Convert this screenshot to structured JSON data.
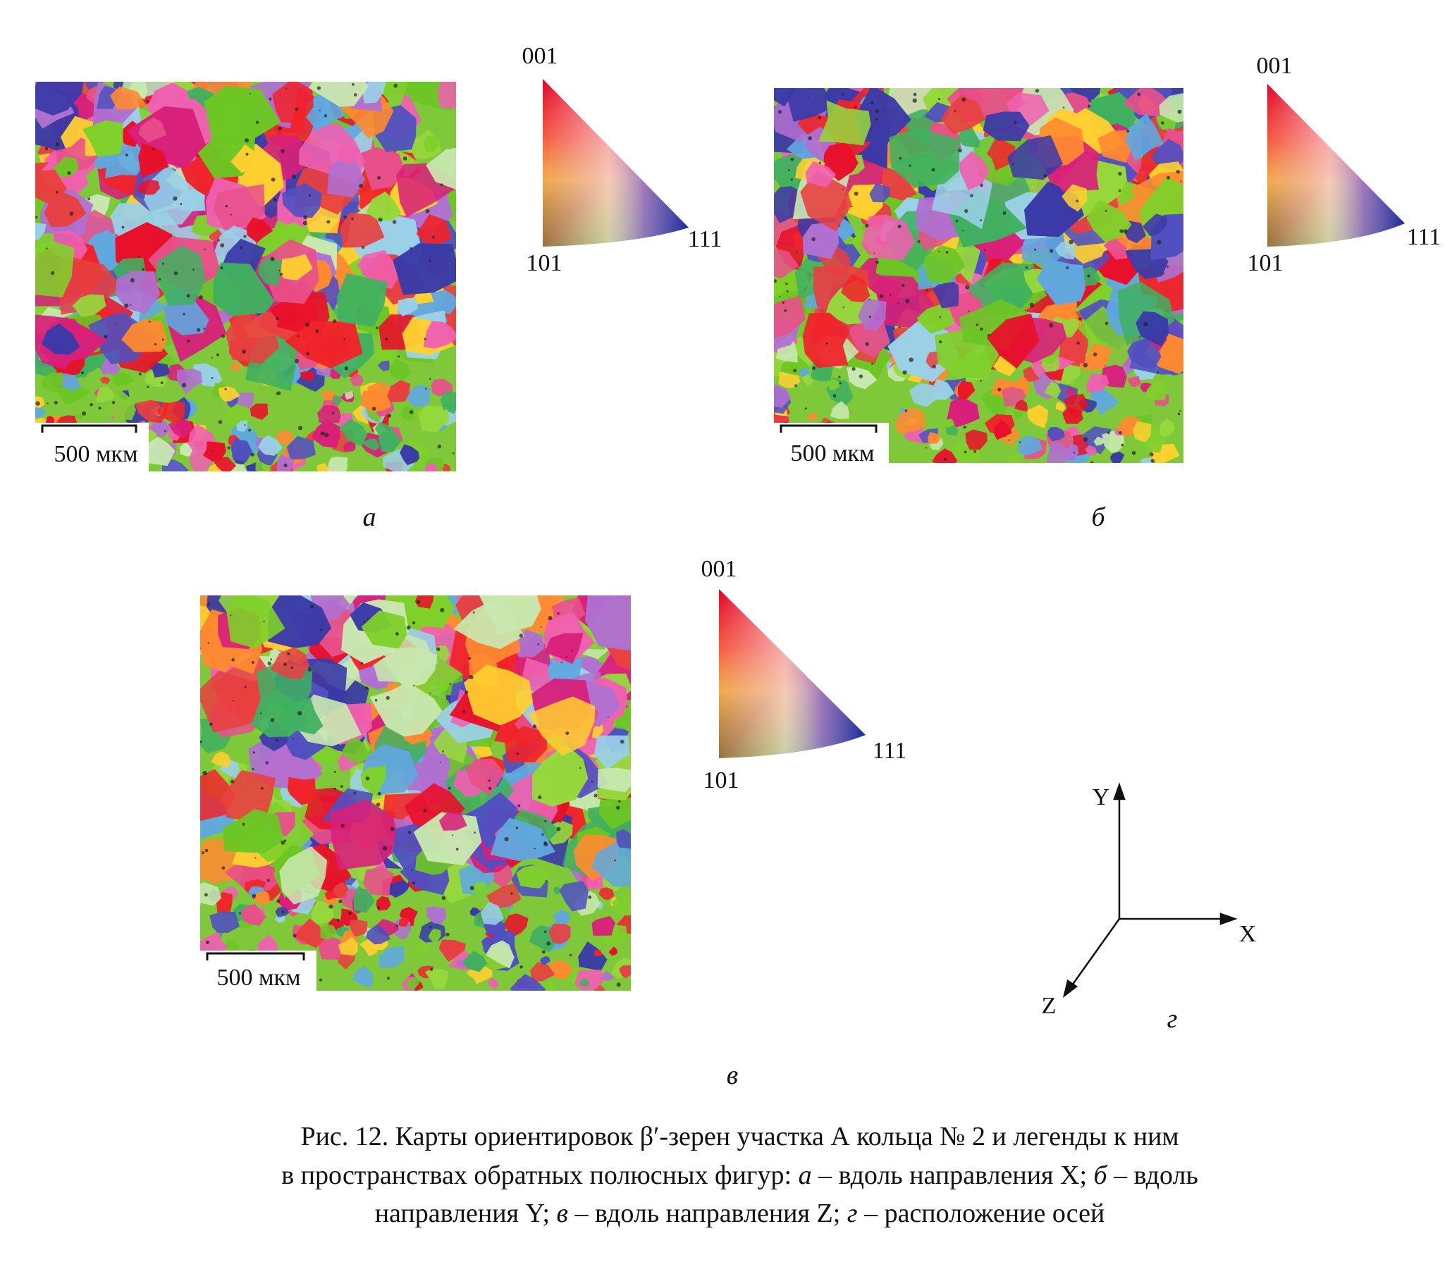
{
  "panels": [
    {
      "letter": "а",
      "scale_bar": "500 мкм",
      "legend": {
        "top": "001",
        "left": "101",
        "right": "111"
      }
    },
    {
      "letter": "б",
      "scale_bar": "500 мкм",
      "legend": {
        "top": "001",
        "left": "101",
        "right": "111"
      }
    },
    {
      "letter": "в",
      "scale_bar": "500 мкм",
      "legend": {
        "top": "001",
        "left": "101",
        "right": "111"
      }
    }
  ],
  "axes": {
    "y": "Y",
    "x": "X",
    "z": "Z",
    "letter": "г"
  },
  "caption": [
    [
      "Рис. 12. Карты ориентировок β′-зерен участка А кольца № 2 и легенды к ним"
    ],
    [
      "в пространствах обратных полюсных фигур: ",
      "а",
      " – вдоль направления X; ",
      "б",
      " – вдоль"
    ],
    [
      "направления Y; ",
      "в",
      " – вдоль направления Z; ",
      "г",
      " – расположение осей"
    ]
  ]
}
